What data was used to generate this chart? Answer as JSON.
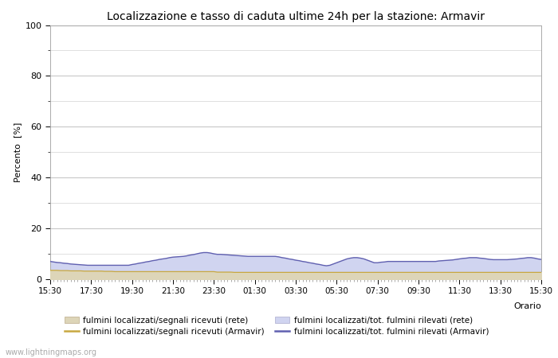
{
  "title": "Localizzazione e tasso di caduta ultime 24h per la stazione: Armavir",
  "ylabel": "Percento  [%]",
  "xlabel": "Orario",
  "ylim": [
    0,
    100
  ],
  "yticks": [
    0,
    20,
    40,
    60,
    80,
    100
  ],
  "yticks_minor": [
    10,
    30,
    50,
    70,
    90
  ],
  "x_labels": [
    "15:30",
    "17:30",
    "19:30",
    "21:30",
    "23:30",
    "01:30",
    "03:30",
    "05:30",
    "07:30",
    "09:30",
    "11:30",
    "13:30",
    "15:30"
  ],
  "background_color": "#ffffff",
  "plot_bg_color": "#ffffff",
  "grid_color": "#c8c8c8",
  "fill_rete_color": "#ddd5b8",
  "fill_armavir_color": "#d0d4f0",
  "line_rete_color": "#c8a840",
  "line_armavir_color": "#6060b0",
  "watermark": "www.lightningmaps.org",
  "legend_labels": [
    "fulmini localizzati/segnali ricevuti (rete)",
    "fulmini localizzati/segnali ricevuti (Armavir)",
    "fulmini localizzati/tot. fulmini rilevati (rete)",
    "fulmini localizzati/tot. fulmini rilevati (Armavir)"
  ],
  "rete_fill_values": [
    3.5,
    3.5,
    3.5,
    3.4,
    3.4,
    3.4,
    3.3,
    3.3,
    3.3,
    3.3,
    3.2,
    3.2,
    3.2,
    3.2,
    3.2,
    3.2,
    3.1,
    3.1,
    3.1,
    3.0,
    3.0,
    3.0,
    3.0,
    3.0,
    3.0,
    3.0,
    3.0,
    3.0,
    3.0,
    3.0,
    3.0,
    3.0,
    3.0,
    3.0,
    3.0,
    3.0,
    3.0,
    3.0,
    3.0,
    3.0,
    3.0,
    3.0,
    3.0,
    3.0,
    3.0,
    3.0,
    3.0,
    3.0,
    3.0,
    2.8,
    2.8,
    2.8,
    2.8,
    2.8,
    2.7,
    2.7,
    2.7,
    2.7,
    2.7,
    2.7,
    2.7,
    2.7,
    2.7,
    2.7,
    2.7,
    2.7,
    2.7,
    2.7,
    2.7,
    2.7,
    2.7,
    2.7,
    2.7,
    2.7,
    2.7,
    2.7,
    2.7,
    2.7,
    2.7,
    2.7,
    2.7,
    2.7,
    2.7,
    2.7,
    2.7,
    2.7,
    2.7,
    2.7,
    2.7,
    2.7,
    2.7,
    2.7,
    2.7,
    2.7,
    2.7,
    2.7,
    2.7,
    2.7,
    2.7,
    2.7,
    2.7,
    2.7,
    2.7,
    2.7,
    2.7,
    2.7,
    2.7,
    2.7,
    2.7,
    2.7,
    2.7,
    2.7,
    2.7,
    2.7,
    2.7,
    2.7,
    2.7,
    2.7,
    2.7,
    2.7,
    2.7,
    2.7,
    2.7,
    2.7,
    2.7,
    2.7,
    2.7,
    2.7,
    2.7,
    2.7,
    2.7,
    2.7,
    2.7,
    2.7,
    2.7,
    2.7,
    2.7,
    2.7,
    2.7,
    2.7,
    2.7,
    2.7,
    2.7,
    2.7,
    2.7
  ],
  "armavir_fill_values": [
    7.0,
    6.8,
    6.6,
    6.5,
    6.3,
    6.2,
    6.0,
    5.9,
    5.8,
    5.7,
    5.6,
    5.5,
    5.5,
    5.5,
    5.5,
    5.5,
    5.5,
    5.5,
    5.5,
    5.5,
    5.5,
    5.5,
    5.5,
    5.5,
    5.8,
    6.0,
    6.3,
    6.5,
    6.8,
    7.0,
    7.3,
    7.5,
    7.8,
    8.0,
    8.2,
    8.5,
    8.7,
    8.8,
    8.9,
    9.0,
    9.2,
    9.5,
    9.7,
    10.0,
    10.3,
    10.5,
    10.5,
    10.3,
    10.0,
    9.8,
    9.8,
    9.7,
    9.6,
    9.5,
    9.4,
    9.3,
    9.2,
    9.1,
    9.0,
    9.0,
    9.0,
    9.0,
    9.0,
    9.0,
    9.0,
    9.0,
    9.0,
    8.8,
    8.5,
    8.3,
    8.0,
    7.8,
    7.5,
    7.3,
    7.0,
    6.8,
    6.5,
    6.3,
    6.0,
    5.8,
    5.5,
    5.3,
    5.5,
    6.0,
    6.5,
    7.0,
    7.5,
    8.0,
    8.3,
    8.5,
    8.5,
    8.3,
    8.0,
    7.5,
    7.0,
    6.5,
    6.5,
    6.7,
    6.8,
    7.0,
    7.0,
    7.0,
    7.0,
    7.0,
    7.0,
    7.0,
    7.0,
    7.0,
    7.0,
    7.0,
    7.0,
    7.0,
    7.0,
    7.0,
    7.2,
    7.3,
    7.4,
    7.5,
    7.6,
    7.8,
    8.0,
    8.2,
    8.3,
    8.5,
    8.5,
    8.5,
    8.3,
    8.2,
    8.0,
    7.8,
    7.7,
    7.7,
    7.7,
    7.7,
    7.7,
    7.8,
    7.9,
    8.0,
    8.2,
    8.3,
    8.5,
    8.5,
    8.3,
    8.0,
    7.8
  ]
}
